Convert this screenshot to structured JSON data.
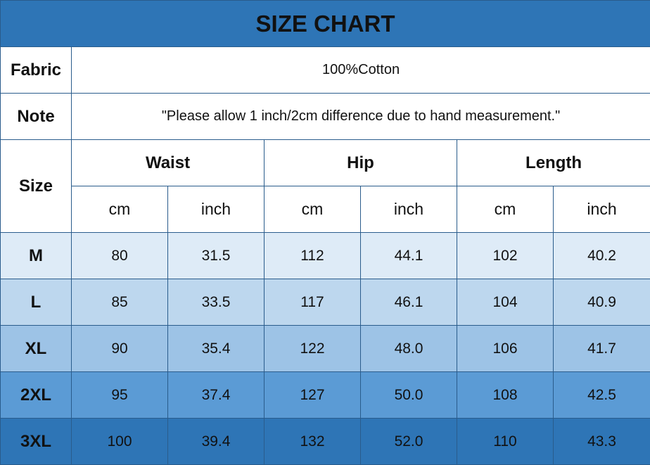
{
  "title": "SIZE CHART",
  "fabric": {
    "label": "Fabric",
    "value": "100%Cotton"
  },
  "note": {
    "label": "Note",
    "value": "\"Please allow 1 inch/2cm difference due to hand measurement.\""
  },
  "header": {
    "size_label": "Size",
    "groups": [
      "Waist",
      "Hip",
      "Length"
    ],
    "units": [
      "cm",
      "inch",
      "cm",
      "inch",
      "cm",
      "inch"
    ]
  },
  "rows": [
    {
      "size": "M",
      "values": [
        "80",
        "31.5",
        "112",
        "44.1",
        "102",
        "40.2"
      ],
      "color": "#deebf7"
    },
    {
      "size": "L",
      "values": [
        "85",
        "33.5",
        "117",
        "46.1",
        "104",
        "40.9"
      ],
      "color": "#bdd7ee"
    },
    {
      "size": "XL",
      "values": [
        "90",
        "35.4",
        "122",
        "48.0",
        "106",
        "41.7"
      ],
      "color": "#9dc3e6"
    },
    {
      "size": "2XL",
      "values": [
        "95",
        "37.4",
        "127",
        "50.0",
        "108",
        "42.5"
      ],
      "color": "#5b9bd5"
    },
    {
      "size": "3XL",
      "values": [
        "100",
        "39.4",
        "132",
        "52.0",
        "110",
        "43.3"
      ],
      "color": "#2e75b6"
    }
  ],
  "colors": {
    "title_bg": "#2e75b6",
    "border": "#2a5c8c"
  }
}
